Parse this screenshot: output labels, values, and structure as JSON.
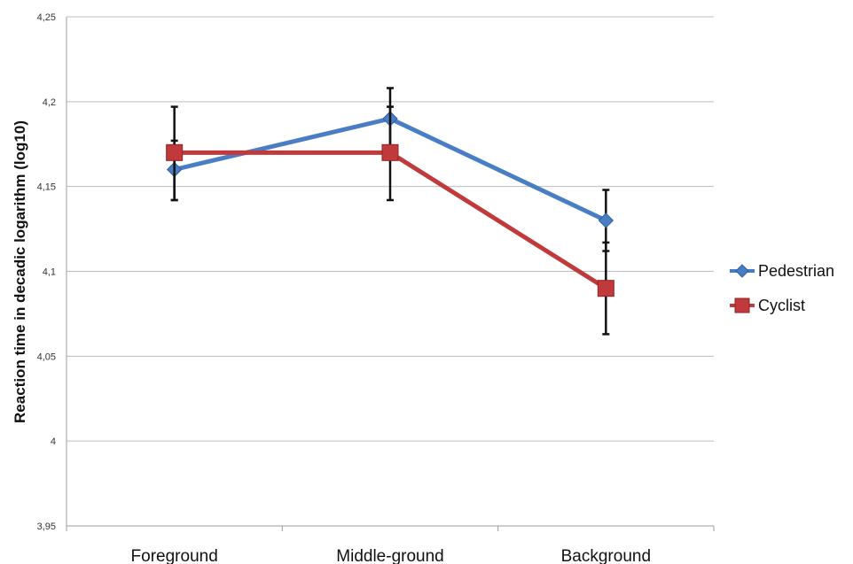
{
  "chart_data": {
    "type": "line",
    "title": "",
    "xlabel": "",
    "ylabel": "Reaction time in decadic logarithm (log10)",
    "categories": [
      "Foreground",
      "Middle-ground",
      "Background"
    ],
    "ylim": [
      3.95,
      4.25
    ],
    "yticks": [
      "3,95",
      "4",
      "4,05",
      "4,1",
      "4,15",
      "4,2",
      "4,25"
    ],
    "ytick_values": [
      3.95,
      4.0,
      4.05,
      4.1,
      4.15,
      4.2,
      4.25
    ],
    "grid": true,
    "legend_position": "right",
    "series": [
      {
        "name": "Pedestrian",
        "values": [
          4.16,
          4.19,
          4.13
        ],
        "error_low": [
          4.142,
          4.173,
          4.112
        ],
        "error_high": [
          4.177,
          4.208,
          4.148
        ],
        "color": "#4a7ec4",
        "marker": "diamond"
      },
      {
        "name": "Cyclist",
        "values": [
          4.17,
          4.17,
          4.09
        ],
        "error_low": [
          4.142,
          4.142,
          4.063
        ],
        "error_high": [
          4.197,
          4.197,
          4.117
        ],
        "color": "#c0393b",
        "marker": "square"
      }
    ]
  }
}
